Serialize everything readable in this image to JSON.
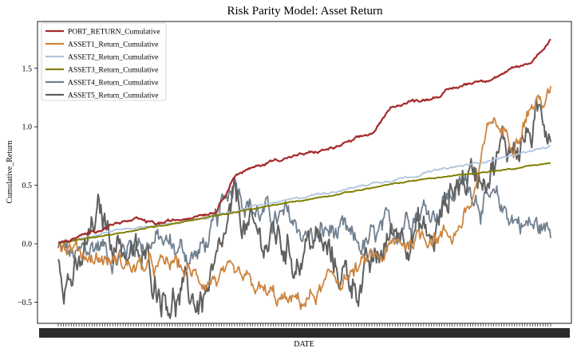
{
  "chart_data": {
    "type": "line",
    "title": "Risk Parity Model: Asset Return",
    "xlabel": "DATE",
    "ylabel": "Cumulative_Return",
    "ylim": [
      -0.68,
      1.9
    ],
    "yticks": [
      -0.5,
      0.0,
      0.5,
      1.0,
      1.5
    ],
    "ytick_labels": [
      "−0.5",
      "0.0",
      "0.5",
      "1.0",
      "1.5"
    ],
    "xlim": [
      0,
      100
    ],
    "x_tick_labels_note": "dense overlapping date labels (illegible)",
    "grid": false,
    "legend": "top-left",
    "x": [
      0,
      4,
      8,
      12,
      16,
      20,
      24,
      28,
      32,
      36,
      40,
      44,
      48,
      52,
      56,
      60,
      64,
      68,
      72,
      76,
      80,
      84,
      88,
      92,
      96,
      100
    ],
    "series": [
      {
        "name": "PORT_RETURN_Cumulative",
        "color": "#a52a2a",
        "width": 2.2,
        "values": [
          0.0,
          0.05,
          0.12,
          0.18,
          0.2,
          0.17,
          0.2,
          0.25,
          0.28,
          0.6,
          0.65,
          0.72,
          0.75,
          0.78,
          0.82,
          0.88,
          0.95,
          1.18,
          1.22,
          1.25,
          1.32,
          1.38,
          1.42,
          1.48,
          1.55,
          1.75
        ]
      },
      {
        "name": "ASSET1_Return_Cumulative",
        "color": "#cd853f",
        "width": 1.8,
        "values": [
          0.02,
          -0.05,
          -0.12,
          -0.15,
          -0.2,
          -0.22,
          -0.18,
          -0.3,
          -0.28,
          -0.35,
          -0.4,
          -0.48,
          -0.52,
          -0.45,
          -0.32,
          -0.25,
          -0.15,
          -0.05,
          0.05,
          0.1,
          0.08,
          0.35,
          1.05,
          0.9,
          1.2,
          1.25
        ]
      },
      {
        "name": "ASSET2_Return_Cumulative",
        "color": "#b0c4de",
        "width": 1.8,
        "values": [
          0.02,
          0.05,
          0.08,
          0.12,
          0.14,
          0.16,
          0.18,
          0.2,
          0.25,
          0.28,
          0.32,
          0.35,
          0.38,
          0.42,
          0.45,
          0.48,
          0.52,
          0.55,
          0.58,
          0.62,
          0.65,
          0.68,
          0.72,
          0.75,
          0.8,
          0.83
        ]
      },
      {
        "name": "ASSET3_Return_Cumulative",
        "color": "#808000",
        "width": 2.0,
        "values": [
          0.0,
          0.03,
          0.06,
          0.09,
          0.12,
          0.15,
          0.18,
          0.21,
          0.24,
          0.27,
          0.3,
          0.33,
          0.36,
          0.39,
          0.42,
          0.45,
          0.48,
          0.51,
          0.54,
          0.56,
          0.58,
          0.6,
          0.62,
          0.64,
          0.67,
          0.69
        ]
      },
      {
        "name": "ASSET4_Return_Cumulative",
        "color": "#708090",
        "width": 1.8,
        "values": [
          -0.05,
          -0.15,
          0.0,
          -0.1,
          0.05,
          0.02,
          -0.05,
          -0.1,
          0.1,
          0.6,
          0.3,
          0.2,
          0.15,
          0.05,
          0.1,
          -0.05,
          0.0,
          0.1,
          0.35,
          0.3,
          0.45,
          0.5,
          0.3,
          0.25,
          0.15,
          0.1
        ]
      },
      {
        "name": "ASSET5_Return_Cumulative",
        "color": "#606060",
        "width": 2.0,
        "values": [
          -0.1,
          -0.3,
          0.2,
          0.05,
          -0.15,
          -0.3,
          -0.45,
          -0.5,
          -0.35,
          0.3,
          0.0,
          0.05,
          -0.1,
          0.05,
          -0.2,
          -0.3,
          -0.25,
          0.1,
          0.2,
          0.0,
          0.5,
          0.6,
          0.75,
          0.85,
          0.95,
          1.1
        ]
      }
    ]
  }
}
